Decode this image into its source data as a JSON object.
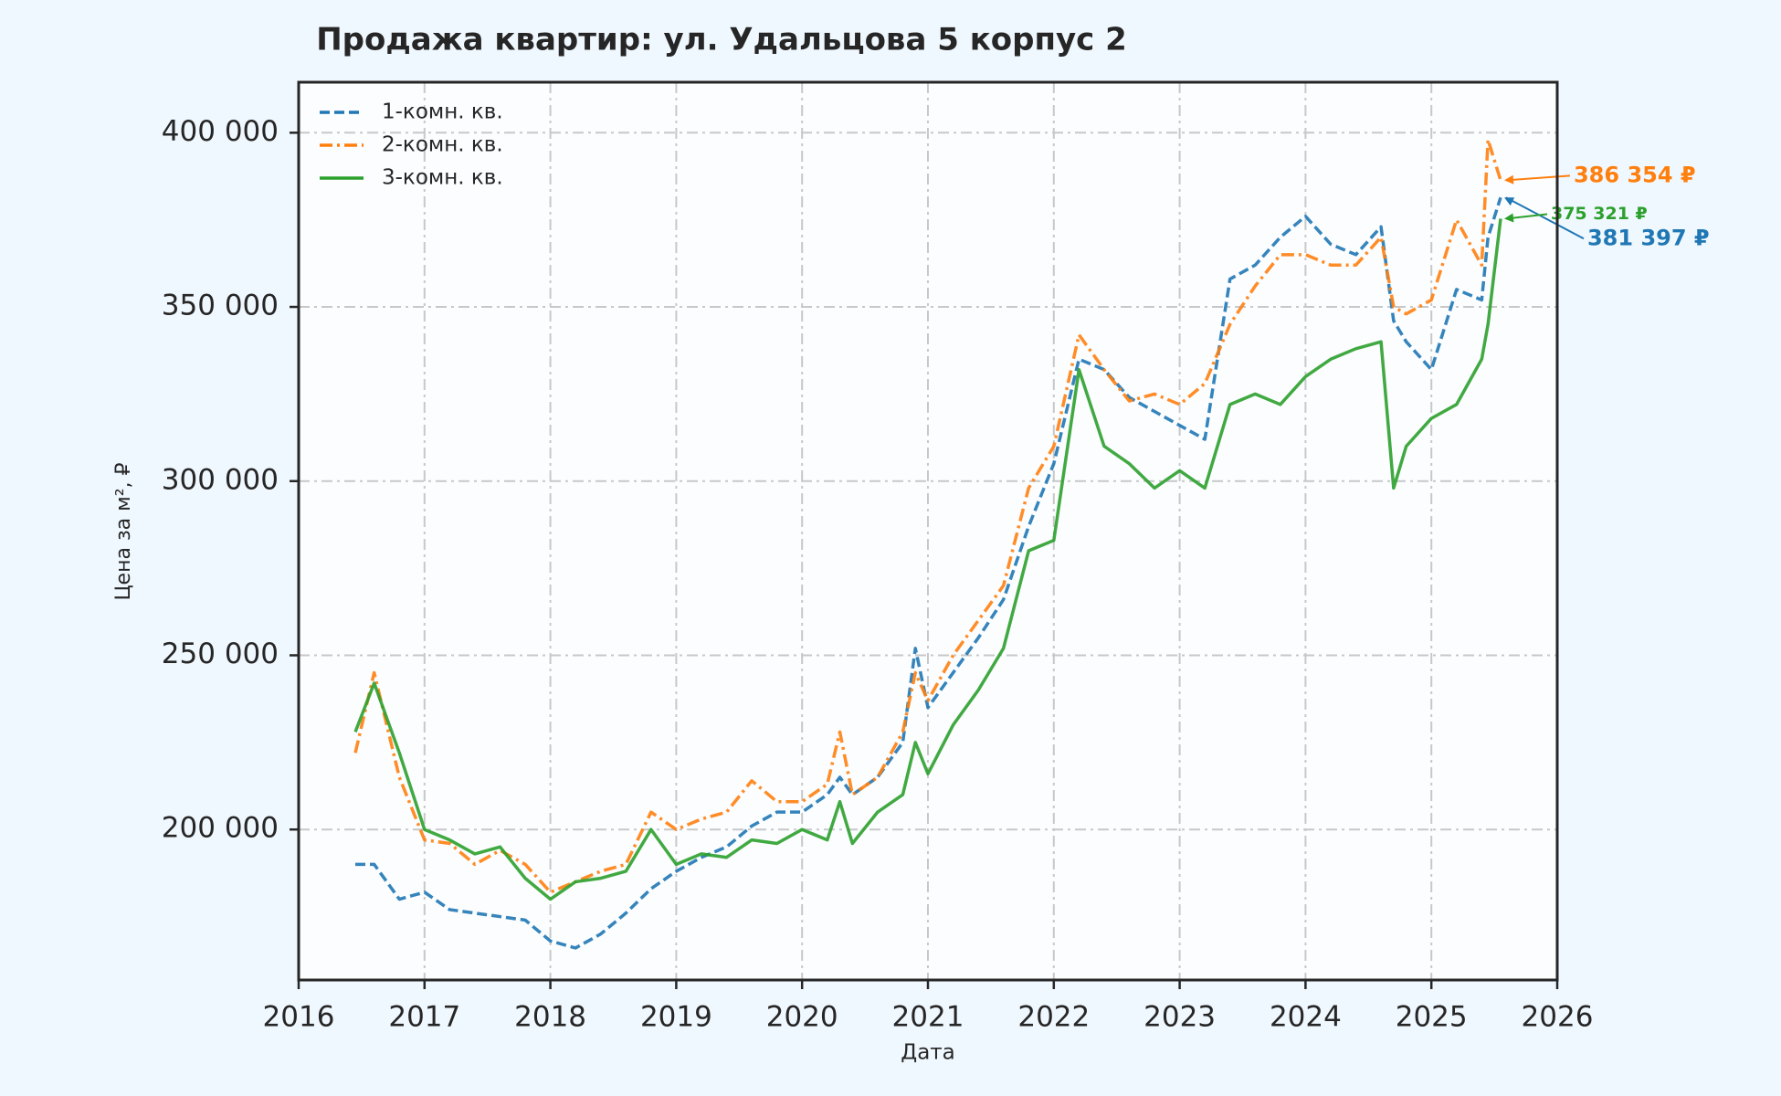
{
  "chart_data": {
    "type": "line",
    "title": "Продажа квартир: ул. Удальцова 5 корпус 2",
    "x_label": "Дата",
    "y_label": "Цена за м², ₽",
    "x": [
      2016.45,
      2016.6,
      2016.8,
      2017.0,
      2017.2,
      2017.4,
      2017.6,
      2017.8,
      2018.0,
      2018.2,
      2018.4,
      2018.6,
      2018.8,
      2019.0,
      2019.2,
      2019.4,
      2019.6,
      2019.8,
      2020.0,
      2020.2,
      2020.3,
      2020.4,
      2020.6,
      2020.8,
      2020.9,
      2021.0,
      2021.2,
      2021.4,
      2021.6,
      2021.8,
      2022.0,
      2022.2,
      2022.4,
      2022.6,
      2022.8,
      2023.0,
      2023.2,
      2023.4,
      2023.6,
      2023.8,
      2024.0,
      2024.2,
      2024.4,
      2024.6,
      2024.7,
      2024.8,
      2025.0,
      2025.2,
      2025.4,
      2025.45,
      2025.55
    ],
    "series": [
      {
        "name": "1-комн. кв.",
        "color": "#1f77b4",
        "linestyle": "dashed",
        "values": [
          190000,
          190000,
          180000,
          182000,
          177000,
          176000,
          175000,
          174000,
          168000,
          166000,
          170000,
          176000,
          183000,
          188000,
          192000,
          195000,
          201000,
          205000,
          205000,
          210000,
          215000,
          210000,
          215000,
          225000,
          252000,
          235000,
          245000,
          255000,
          266000,
          287000,
          305000,
          335000,
          332000,
          324000,
          320000,
          316000,
          312000,
          358000,
          362000,
          370000,
          376000,
          368000,
          365000,
          373000,
          346000,
          340000,
          332000,
          355000,
          352000,
          370000,
          381397
        ],
        "value_labels": [
          null,
          null,
          null,
          null,
          null,
          null,
          null,
          null,
          null,
          null,
          null,
          null,
          null,
          null,
          null,
          null,
          null,
          null,
          null,
          null,
          null,
          null,
          null,
          null,
          null,
          null,
          null,
          null,
          null,
          null,
          null,
          null,
          null,
          null,
          null,
          null,
          null,
          null,
          null,
          null,
          null,
          null,
          null,
          null,
          null,
          null,
          null,
          null,
          null,
          null,
          "381 397 ₽"
        ]
      },
      {
        "name": "2-комн. кв.",
        "color": "#ff7f0e",
        "linestyle": "dashdot",
        "values": [
          222000,
          245000,
          215000,
          197000,
          196000,
          190000,
          194000,
          190000,
          182000,
          185000,
          188000,
          190000,
          205000,
          200000,
          203000,
          205000,
          214000,
          208000,
          208000,
          213000,
          228000,
          210000,
          215000,
          228000,
          245000,
          237000,
          250000,
          260000,
          270000,
          298000,
          310000,
          342000,
          332000,
          323000,
          325000,
          322000,
          328000,
          345000,
          356000,
          365000,
          365000,
          362000,
          362000,
          370000,
          350000,
          348000,
          352000,
          375000,
          362000,
          398000,
          386354
        ],
        "value_labels": [
          null,
          null,
          null,
          null,
          null,
          null,
          null,
          null,
          null,
          null,
          null,
          null,
          null,
          null,
          null,
          null,
          null,
          null,
          null,
          null,
          null,
          null,
          null,
          null,
          null,
          null,
          null,
          null,
          null,
          null,
          null,
          null,
          null,
          null,
          null,
          null,
          null,
          null,
          null,
          null,
          null,
          null,
          null,
          null,
          null,
          null,
          null,
          null,
          null,
          null,
          "386 354 ₽"
        ]
      },
      {
        "name": "3-комн. кв.",
        "color": "#2ca02c",
        "linestyle": "solid",
        "values": [
          228000,
          242000,
          222000,
          200000,
          197000,
          193000,
          195000,
          186000,
          180000,
          185000,
          186000,
          188000,
          200000,
          190000,
          193000,
          192000,
          197000,
          196000,
          200000,
          197000,
          208000,
          196000,
          205000,
          210000,
          225000,
          216000,
          230000,
          240000,
          252000,
          280000,
          283000,
          332000,
          310000,
          305000,
          298000,
          303000,
          298000,
          322000,
          325000,
          322000,
          330000,
          335000,
          338000,
          340000,
          298000,
          310000,
          318000,
          322000,
          335000,
          345000,
          375321
        ],
        "value_labels": [
          null,
          null,
          null,
          null,
          null,
          null,
          null,
          null,
          null,
          null,
          null,
          null,
          null,
          null,
          null,
          null,
          null,
          null,
          null,
          null,
          null,
          null,
          null,
          null,
          null,
          null,
          null,
          null,
          null,
          null,
          null,
          null,
          null,
          null,
          null,
          null,
          null,
          null,
          null,
          null,
          null,
          null,
          null,
          null,
          null,
          null,
          null,
          null,
          null,
          null,
          "375 321 ₽"
        ]
      }
    ],
    "xlim": [
      2016,
      2026
    ],
    "xticks": [
      2016,
      2017,
      2018,
      2019,
      2020,
      2021,
      2022,
      2023,
      2024,
      2025,
      2026
    ],
    "ylim": [
      156800,
      414500
    ],
    "yticks": [
      {
        "value": 200000,
        "label": "200 000"
      },
      {
        "value": 250000,
        "label": "250 000"
      },
      {
        "value": 300000,
        "label": "300 000"
      },
      {
        "value": 350000,
        "label": "350 000"
      },
      {
        "value": 400000,
        "label": "400 000"
      }
    ],
    "grid": true,
    "legend": "upper left"
  }
}
